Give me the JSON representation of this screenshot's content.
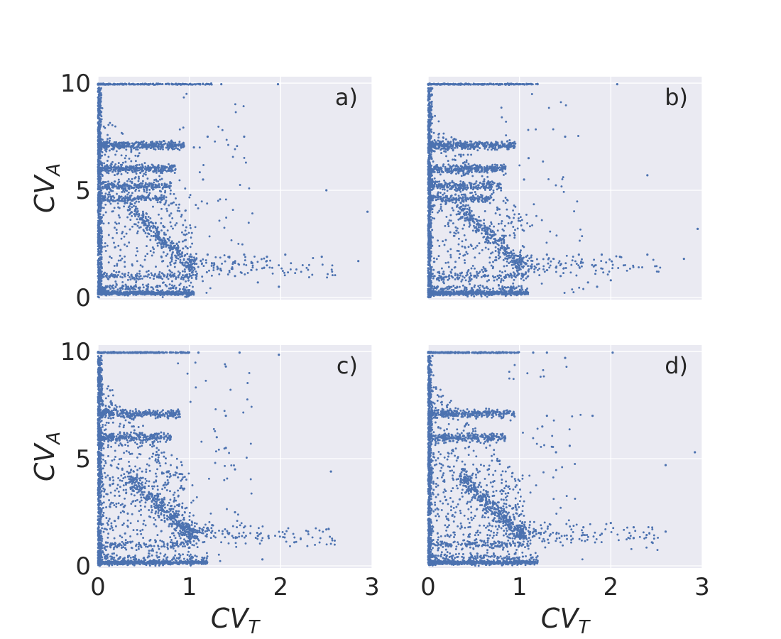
{
  "figure": {
    "background": "#ffffff",
    "panel_background": "#eaeaf2",
    "grid_color": "#ffffff",
    "marker_color": "#4c72b0"
  },
  "chart_data": [
    {
      "type": "scatter",
      "panel_label": "a)",
      "xlabel": "CV_T",
      "ylabel": "CV_A",
      "show_xlabel": false,
      "show_ylabel": true,
      "show_xticklabels": false,
      "show_yticklabels": true,
      "xlim": [
        0,
        3
      ],
      "ylim": [
        -0.1,
        10.3
      ],
      "xticks": [
        0,
        1,
        2,
        3
      ],
      "yticks": [
        0,
        5,
        10
      ],
      "grid": true,
      "legend": "none",
      "structure": {
        "baseline_y": 0.2,
        "baseline_xmax": 1.05,
        "cap_y": 9.95,
        "cap_xmax": 1.25,
        "bands": [
          {
            "y": 7.1,
            "xmax": 0.95,
            "weight": 9
          },
          {
            "y": 6.0,
            "xmax": 0.85,
            "weight": 7
          },
          {
            "y": 5.2,
            "xmax": 0.8,
            "weight": 5
          },
          {
            "y": 4.6,
            "xmax": 0.75,
            "weight": 4
          },
          {
            "y": 1.0,
            "xmax": 1.1,
            "weight": 3
          }
        ],
        "arm_weight": 6,
        "tail_weight": 4
      },
      "points": [
        {
          "x": 0.0,
          "y": 9.95
        },
        {
          "x": 0.95,
          "y": 9.95
        },
        {
          "x": 1.35,
          "y": 9.95
        },
        {
          "x": 1.97,
          "y": 9.95
        },
        {
          "x": 1.05,
          "y": 7.0
        },
        {
          "x": 1.2,
          "y": 7.5
        },
        {
          "x": 1.6,
          "y": 7.5
        },
        {
          "x": 1.15,
          "y": 5.5
        },
        {
          "x": 2.5,
          "y": 5.0
        },
        {
          "x": 2.95,
          "y": 4.0
        },
        {
          "x": 1.2,
          "y": 2.0
        },
        {
          "x": 1.6,
          "y": 2.0
        },
        {
          "x": 1.85,
          "y": 1.9
        },
        {
          "x": 2.05,
          "y": 2.0
        },
        {
          "x": 2.45,
          "y": 1.9
        },
        {
          "x": 2.85,
          "y": 1.7
        },
        {
          "x": 1.5,
          "y": 1.0
        },
        {
          "x": 1.75,
          "y": 0.7
        },
        {
          "x": 1.98,
          "y": 0.5
        },
        {
          "x": 1.0,
          "y": 0.1
        }
      ]
    },
    {
      "type": "scatter",
      "panel_label": "b)",
      "xlabel": "CV_T",
      "ylabel": "CV_A",
      "show_xlabel": false,
      "show_ylabel": false,
      "show_xticklabels": false,
      "show_yticklabels": false,
      "xlim": [
        0,
        3
      ],
      "ylim": [
        -0.1,
        10.3
      ],
      "xticks": [
        0,
        1,
        2,
        3
      ],
      "yticks": [
        0,
        5,
        10
      ],
      "grid": true,
      "legend": "none",
      "structure": {
        "baseline_y": 0.2,
        "baseline_xmax": 1.1,
        "cap_y": 9.95,
        "cap_xmax": 1.2,
        "bands": [
          {
            "y": 7.1,
            "xmax": 0.95,
            "weight": 9
          },
          {
            "y": 6.0,
            "xmax": 0.85,
            "weight": 7
          },
          {
            "y": 5.2,
            "xmax": 0.8,
            "weight": 5
          },
          {
            "y": 4.6,
            "xmax": 0.7,
            "weight": 4
          },
          {
            "y": 1.0,
            "xmax": 1.1,
            "weight": 3
          }
        ],
        "arm_weight": 6,
        "tail_weight": 4
      },
      "points": [
        {
          "x": 0.0,
          "y": 9.95
        },
        {
          "x": 1.0,
          "y": 9.95
        },
        {
          "x": 2.07,
          "y": 9.95
        },
        {
          "x": 1.5,
          "y": 7.5
        },
        {
          "x": 1.1,
          "y": 6.5
        },
        {
          "x": 1.05,
          "y": 5.5
        },
        {
          "x": 2.4,
          "y": 5.7
        },
        {
          "x": 2.95,
          "y": 3.2
        },
        {
          "x": 1.3,
          "y": 2.0
        },
        {
          "x": 1.65,
          "y": 2.0
        },
        {
          "x": 1.9,
          "y": 2.0
        },
        {
          "x": 2.1,
          "y": 1.9
        },
        {
          "x": 2.4,
          "y": 2.0
        },
        {
          "x": 2.8,
          "y": 1.8
        },
        {
          "x": 1.45,
          "y": 1.0
        },
        {
          "x": 1.75,
          "y": 0.7
        },
        {
          "x": 2.0,
          "y": 0.8
        },
        {
          "x": 1.85,
          "y": 0.5
        }
      ]
    },
    {
      "type": "scatter",
      "panel_label": "c)",
      "xlabel": "CV_T",
      "ylabel": "CV_A",
      "show_xlabel": true,
      "show_ylabel": true,
      "show_xticklabels": true,
      "show_yticklabels": true,
      "xlim": [
        0,
        3
      ],
      "ylim": [
        -0.1,
        10.3
      ],
      "xticks": [
        0,
        1,
        2,
        3
      ],
      "yticks": [
        0,
        5,
        10
      ],
      "grid": true,
      "legend": "none",
      "structure": {
        "baseline_y": 0.15,
        "baseline_xmax": 1.2,
        "cap_y": 9.95,
        "cap_xmax": 1.0,
        "bands": [
          {
            "y": 7.1,
            "xmax": 0.9,
            "weight": 7
          },
          {
            "y": 6.0,
            "xmax": 0.8,
            "weight": 6
          },
          {
            "y": 1.0,
            "xmax": 1.1,
            "weight": 3
          }
        ],
        "arm_weight": 8,
        "tail_weight": 5
      },
      "points": [
        {
          "x": 0.0,
          "y": 9.95
        },
        {
          "x": 1.1,
          "y": 9.95
        },
        {
          "x": 1.55,
          "y": 9.95
        },
        {
          "x": 1.98,
          "y": 9.85
        },
        {
          "x": 1.4,
          "y": 9.3
        },
        {
          "x": 1.4,
          "y": 7.0
        },
        {
          "x": 1.3,
          "y": 6.0
        },
        {
          "x": 1.4,
          "y": 5.5
        },
        {
          "x": 1.5,
          "y": 4.5
        },
        {
          "x": 2.55,
          "y": 4.4
        },
        {
          "x": 1.5,
          "y": 2.5
        },
        {
          "x": 2.3,
          "y": 1.6
        },
        {
          "x": 2.5,
          "y": 1.7
        },
        {
          "x": 2.15,
          "y": 1.1
        },
        {
          "x": 1.75,
          "y": 1.4
        },
        {
          "x": 1.8,
          "y": 0.3
        },
        {
          "x": 1.25,
          "y": 1.9
        }
      ]
    },
    {
      "type": "scatter",
      "panel_label": "d)",
      "xlabel": "CV_T",
      "ylabel": "CV_A",
      "show_xlabel": true,
      "show_ylabel": false,
      "show_xticklabels": true,
      "show_yticklabels": false,
      "xlim": [
        0,
        3
      ],
      "ylim": [
        -0.1,
        10.3
      ],
      "xticks": [
        0,
        1,
        2,
        3
      ],
      "yticks": [
        0,
        5,
        10
      ],
      "grid": true,
      "legend": "none",
      "structure": {
        "baseline_y": 0.15,
        "baseline_xmax": 1.2,
        "cap_y": 9.95,
        "cap_xmax": 1.0,
        "bands": [
          {
            "y": 7.1,
            "xmax": 0.95,
            "weight": 7
          },
          {
            "y": 6.0,
            "xmax": 0.85,
            "weight": 6
          },
          {
            "y": 1.0,
            "xmax": 1.1,
            "weight": 3
          }
        ],
        "arm_weight": 8,
        "tail_weight": 5
      },
      "points": [
        {
          "x": 0.0,
          "y": 9.95
        },
        {
          "x": 1.15,
          "y": 9.95
        },
        {
          "x": 1.3,
          "y": 9.95
        },
        {
          "x": 2.02,
          "y": 9.95
        },
        {
          "x": 1.5,
          "y": 9.7
        },
        {
          "x": 1.8,
          "y": 7.0
        },
        {
          "x": 1.3,
          "y": 7.0
        },
        {
          "x": 1.25,
          "y": 6.5
        },
        {
          "x": 1.55,
          "y": 5.6
        },
        {
          "x": 1.4,
          "y": 5.3
        },
        {
          "x": 2.6,
          "y": 4.7
        },
        {
          "x": 2.92,
          "y": 5.3
        },
        {
          "x": 2.0,
          "y": 2.0
        },
        {
          "x": 2.25,
          "y": 1.8
        },
        {
          "x": 2.6,
          "y": 1.6
        },
        {
          "x": 2.25,
          "y": 1.3
        },
        {
          "x": 2.45,
          "y": 1.1
        },
        {
          "x": 1.9,
          "y": 1.5
        },
        {
          "x": 1.7,
          "y": 1.8
        }
      ]
    }
  ]
}
